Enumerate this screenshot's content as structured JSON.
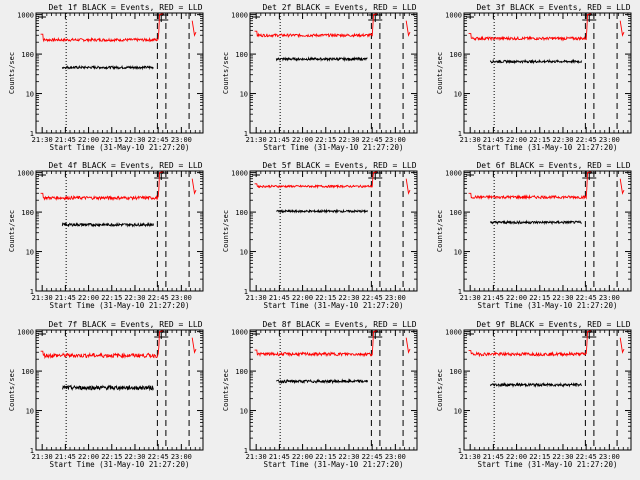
{
  "figure": {
    "background": "#efefef",
    "colors": {
      "events": "#000000",
      "lld": "#ff0000",
      "axis": "#000000"
    }
  },
  "chart_data": [
    {
      "type": "line",
      "title": "Det 1f BLACK = Events, RED = LLD",
      "xlabel": "Start Time (31-May-10 21:27:20)",
      "ylabel": "Counts/sec",
      "x_tick_labels": [
        "21:30",
        "21:45",
        "22:00",
        "22:15",
        "22:30",
        "22:45",
        "23:00"
      ],
      "x_tick_minutes": [
        150,
        165,
        180,
        195,
        210,
        225,
        240
      ],
      "xlim": [
        146,
        254
      ],
      "y_tick_labels": [
        "1",
        "10",
        "100",
        "1000"
      ],
      "ylim": [
        1,
        1100
      ],
      "y_scale": "log",
      "vlines": [
        {
          "x": 165.5,
          "style": "dotted"
        },
        {
          "x": 224.5,
          "style": "dashed"
        },
        {
          "x": 230.0,
          "style": "dashed"
        },
        {
          "x": 245.0,
          "style": "dashed"
        }
      ],
      "series": [
        {
          "role": "lld",
          "x_start": 149,
          "x_end": 225,
          "level": 230,
          "edge": 320,
          "spike_to": 1000,
          "after_x": 247,
          "after_from": 700,
          "after_to": 300,
          "noise": 0.08
        },
        {
          "role": "events",
          "x_start": 163,
          "x_end": 222,
          "level": 46,
          "noise": 0.07
        }
      ]
    },
    {
      "type": "line",
      "title": "Det 2f BLACK = Events, RED = LLD",
      "xlabel": "Start Time (31-May-10 21:27:20)",
      "ylabel": "Counts/sec",
      "x_tick_labels": [
        "21:30",
        "21:45",
        "22:00",
        "22:15",
        "22:30",
        "22:45",
        "23:00"
      ],
      "x_tick_minutes": [
        150,
        165,
        180,
        195,
        210,
        225,
        240
      ],
      "xlim": [
        146,
        254
      ],
      "y_tick_labels": [
        "1",
        "10",
        "100",
        "1000"
      ],
      "ylim": [
        1,
        1100
      ],
      "y_scale": "log",
      "vlines": [
        {
          "x": 165.5,
          "style": "dotted"
        },
        {
          "x": 224.5,
          "style": "dashed"
        },
        {
          "x": 230.0,
          "style": "dashed"
        },
        {
          "x": 245.0,
          "style": "dashed"
        }
      ],
      "series": [
        {
          "role": "lld",
          "x_start": 149,
          "x_end": 225,
          "level": 300,
          "edge": 380,
          "spike_to": 1000,
          "after_x": 247,
          "after_from": 700,
          "after_to": 300,
          "noise": 0.08
        },
        {
          "role": "events",
          "x_start": 163,
          "x_end": 222,
          "level": 75,
          "noise": 0.07
        }
      ]
    },
    {
      "type": "line",
      "title": "Det 3f BLACK = Events, RED = LLD",
      "xlabel": "Start Time (31-May-10 21:27:20)",
      "ylabel": "Counts/sec",
      "x_tick_labels": [
        "21:30",
        "21:45",
        "22:00",
        "22:15",
        "22:30",
        "22:45",
        "23:00"
      ],
      "x_tick_minutes": [
        150,
        165,
        180,
        195,
        210,
        225,
        240
      ],
      "xlim": [
        146,
        254
      ],
      "y_tick_labels": [
        "1",
        "10",
        "100",
        "1000"
      ],
      "ylim": [
        1,
        1100
      ],
      "y_scale": "log",
      "vlines": [
        {
          "x": 165.5,
          "style": "dotted"
        },
        {
          "x": 224.5,
          "style": "dashed"
        },
        {
          "x": 230.0,
          "style": "dashed"
        },
        {
          "x": 245.0,
          "style": "dashed"
        }
      ],
      "series": [
        {
          "role": "lld",
          "x_start": 149,
          "x_end": 225,
          "level": 250,
          "edge": 330,
          "spike_to": 1000,
          "after_x": 247,
          "after_from": 700,
          "after_to": 300,
          "noise": 0.08
        },
        {
          "role": "events",
          "x_start": 163,
          "x_end": 222,
          "level": 65,
          "noise": 0.07
        }
      ]
    },
    {
      "type": "line",
      "title": "Det 4f BLACK = Events, RED = LLD",
      "xlabel": "Start Time (31-May-10 21:27:20)",
      "ylabel": "Counts/sec",
      "x_tick_labels": [
        "21:30",
        "21:45",
        "22:00",
        "22:15",
        "22:30",
        "22:45",
        "23:00"
      ],
      "x_tick_minutes": [
        150,
        165,
        180,
        195,
        210,
        225,
        240
      ],
      "xlim": [
        146,
        254
      ],
      "y_tick_labels": [
        "1",
        "10",
        "100",
        "1000"
      ],
      "ylim": [
        1,
        1100
      ],
      "y_scale": "log",
      "vlines": [
        {
          "x": 165.5,
          "style": "dotted"
        },
        {
          "x": 224.5,
          "style": "dashed"
        },
        {
          "x": 230.0,
          "style": "dashed"
        },
        {
          "x": 245.0,
          "style": "dashed"
        }
      ],
      "series": [
        {
          "role": "lld",
          "x_start": 149,
          "x_end": 225,
          "level": 230,
          "edge": 300,
          "spike_to": 1000,
          "after_x": 247,
          "after_from": 700,
          "after_to": 300,
          "noise": 0.09
        },
        {
          "role": "events",
          "x_start": 163,
          "x_end": 222,
          "level": 48,
          "noise": 0.08
        }
      ]
    },
    {
      "type": "line",
      "title": "Det 5f BLACK = Events, RED = LLD",
      "xlabel": "Start Time (31-May-10 21:27:20)",
      "ylabel": "Counts/sec",
      "x_tick_labels": [
        "21:30",
        "21:45",
        "22:00",
        "22:15",
        "22:30",
        "22:45",
        "23:00"
      ],
      "x_tick_minutes": [
        150,
        165,
        180,
        195,
        210,
        225,
        240
      ],
      "xlim": [
        146,
        254
      ],
      "y_tick_labels": [
        "1",
        "10",
        "100",
        "1000"
      ],
      "ylim": [
        1,
        1100
      ],
      "y_scale": "log",
      "vlines": [
        {
          "x": 165.5,
          "style": "dotted"
        },
        {
          "x": 224.5,
          "style": "dashed"
        },
        {
          "x": 230.0,
          "style": "dashed"
        },
        {
          "x": 245.0,
          "style": "dashed"
        }
      ],
      "series": [
        {
          "role": "lld",
          "x_start": 149,
          "x_end": 225,
          "level": 450,
          "edge": 520,
          "spike_to": 1000,
          "after_x": 247,
          "after_from": 700,
          "after_to": 300,
          "noise": 0.06
        },
        {
          "role": "events",
          "x_start": 163,
          "x_end": 222,
          "level": 105,
          "noise": 0.06
        }
      ]
    },
    {
      "type": "line",
      "title": "Det 6f BLACK = Events, RED = LLD",
      "xlabel": "Start Time (31-May-10 21:27:20)",
      "ylabel": "Counts/sec",
      "x_tick_labels": [
        "21:30",
        "21:45",
        "22:00",
        "22:15",
        "22:30",
        "22:45",
        "23:00"
      ],
      "x_tick_minutes": [
        150,
        165,
        180,
        195,
        210,
        225,
        240
      ],
      "xlim": [
        146,
        254
      ],
      "y_tick_labels": [
        "1",
        "10",
        "100",
        "1000"
      ],
      "ylim": [
        1,
        1100
      ],
      "y_scale": "log",
      "vlines": [
        {
          "x": 165.5,
          "style": "dotted"
        },
        {
          "x": 224.5,
          "style": "dashed"
        },
        {
          "x": 230.0,
          "style": "dashed"
        },
        {
          "x": 245.0,
          "style": "dashed"
        }
      ],
      "series": [
        {
          "role": "lld",
          "x_start": 149,
          "x_end": 225,
          "level": 240,
          "edge": 300,
          "spike_to": 1000,
          "after_x": 247,
          "after_from": 700,
          "after_to": 300,
          "noise": 0.08
        },
        {
          "role": "events",
          "x_start": 163,
          "x_end": 222,
          "level": 55,
          "noise": 0.07
        }
      ]
    },
    {
      "type": "line",
      "title": "Det 7f BLACK = Events, RED = LLD",
      "xlabel": "Start Time (31-May-10 21:27:20)",
      "ylabel": "Counts/sec",
      "x_tick_labels": [
        "21:30",
        "21:45",
        "22:00",
        "22:15",
        "22:30",
        "22:45",
        "23:00"
      ],
      "x_tick_minutes": [
        150,
        165,
        180,
        195,
        210,
        225,
        240
      ],
      "xlim": [
        146,
        254
      ],
      "y_tick_labels": [
        "1",
        "10",
        "100",
        "1000"
      ],
      "ylim": [
        1,
        1100
      ],
      "y_scale": "log",
      "vlines": [
        {
          "x": 165.5,
          "style": "dotted"
        },
        {
          "x": 224.5,
          "style": "dashed"
        },
        {
          "x": 230.0,
          "style": "dashed"
        },
        {
          "x": 245.0,
          "style": "dashed"
        }
      ],
      "series": [
        {
          "role": "lld",
          "x_start": 149,
          "x_end": 225,
          "level": 250,
          "edge": 320,
          "spike_to": 1000,
          "after_x": 247,
          "after_from": 700,
          "after_to": 300,
          "noise": 0.12
        },
        {
          "role": "events",
          "x_start": 163,
          "x_end": 222,
          "level": 38,
          "noise": 0.12
        }
      ]
    },
    {
      "type": "line",
      "title": "Det 8f BLACK = Events, RED = LLD",
      "xlabel": "Start Time (31-May-10 21:27:20)",
      "ylabel": "Counts/sec",
      "x_tick_labels": [
        "21:30",
        "21:45",
        "22:00",
        "22:15",
        "22:30",
        "22:45",
        "23:00"
      ],
      "x_tick_minutes": [
        150,
        165,
        180,
        195,
        210,
        225,
        240
      ],
      "xlim": [
        146,
        254
      ],
      "y_tick_labels": [
        "1",
        "10",
        "100",
        "1000"
      ],
      "ylim": [
        1,
        1100
      ],
      "y_scale": "log",
      "vlines": [
        {
          "x": 165.5,
          "style": "dotted"
        },
        {
          "x": 224.5,
          "style": "dashed"
        },
        {
          "x": 230.0,
          "style": "dashed"
        },
        {
          "x": 245.0,
          "style": "dashed"
        }
      ],
      "series": [
        {
          "role": "lld",
          "x_start": 149,
          "x_end": 225,
          "level": 270,
          "edge": 340,
          "spike_to": 1000,
          "after_x": 247,
          "after_from": 700,
          "after_to": 300,
          "noise": 0.09
        },
        {
          "role": "events",
          "x_start": 163,
          "x_end": 222,
          "level": 55,
          "noise": 0.08
        }
      ]
    },
    {
      "type": "line",
      "title": "Det 9f BLACK = Events, RED = LLD",
      "xlabel": "Start Time (31-May-10 21:27:20)",
      "ylabel": "Counts/sec",
      "x_tick_labels": [
        "21:30",
        "21:45",
        "22:00",
        "22:15",
        "22:30",
        "22:45",
        "23:00"
      ],
      "x_tick_minutes": [
        150,
        165,
        180,
        195,
        210,
        225,
        240
      ],
      "xlim": [
        146,
        254
      ],
      "y_tick_labels": [
        "1",
        "10",
        "100",
        "1000"
      ],
      "ylim": [
        1,
        1100
      ],
      "y_scale": "log",
      "vlines": [
        {
          "x": 165.5,
          "style": "dotted"
        },
        {
          "x": 224.5,
          "style": "dashed"
        },
        {
          "x": 230.0,
          "style": "dashed"
        },
        {
          "x": 245.0,
          "style": "dashed"
        }
      ],
      "series": [
        {
          "role": "lld",
          "x_start": 149,
          "x_end": 225,
          "level": 270,
          "edge": 330,
          "spike_to": 1000,
          "after_x": 247,
          "after_from": 700,
          "after_to": 300,
          "noise": 0.09
        },
        {
          "role": "events",
          "x_start": 163,
          "x_end": 222,
          "level": 45,
          "noise": 0.08
        }
      ]
    }
  ]
}
